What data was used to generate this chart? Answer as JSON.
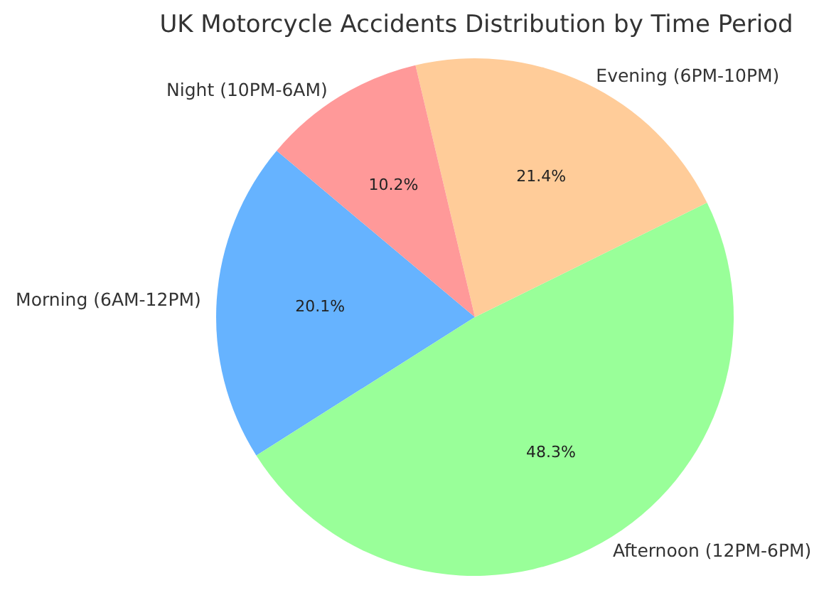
{
  "chart_data": {
    "type": "pie",
    "title": "UK Motorcycle Accidents Distribution by Time Period",
    "categories": [
      "Morning (6AM-12PM)",
      "Afternoon (12PM-6PM)",
      "Evening (6PM-10PM)",
      "Night (10PM-6AM)"
    ],
    "values": [
      20.1,
      48.3,
      21.4,
      10.2
    ],
    "colors": [
      "#66b3ff",
      "#99ff99",
      "#ffcc99",
      "#ff9999"
    ],
    "value_labels": [
      "20.1%",
      "48.3%",
      "21.4%",
      "10.2%"
    ],
    "legend": false
  }
}
